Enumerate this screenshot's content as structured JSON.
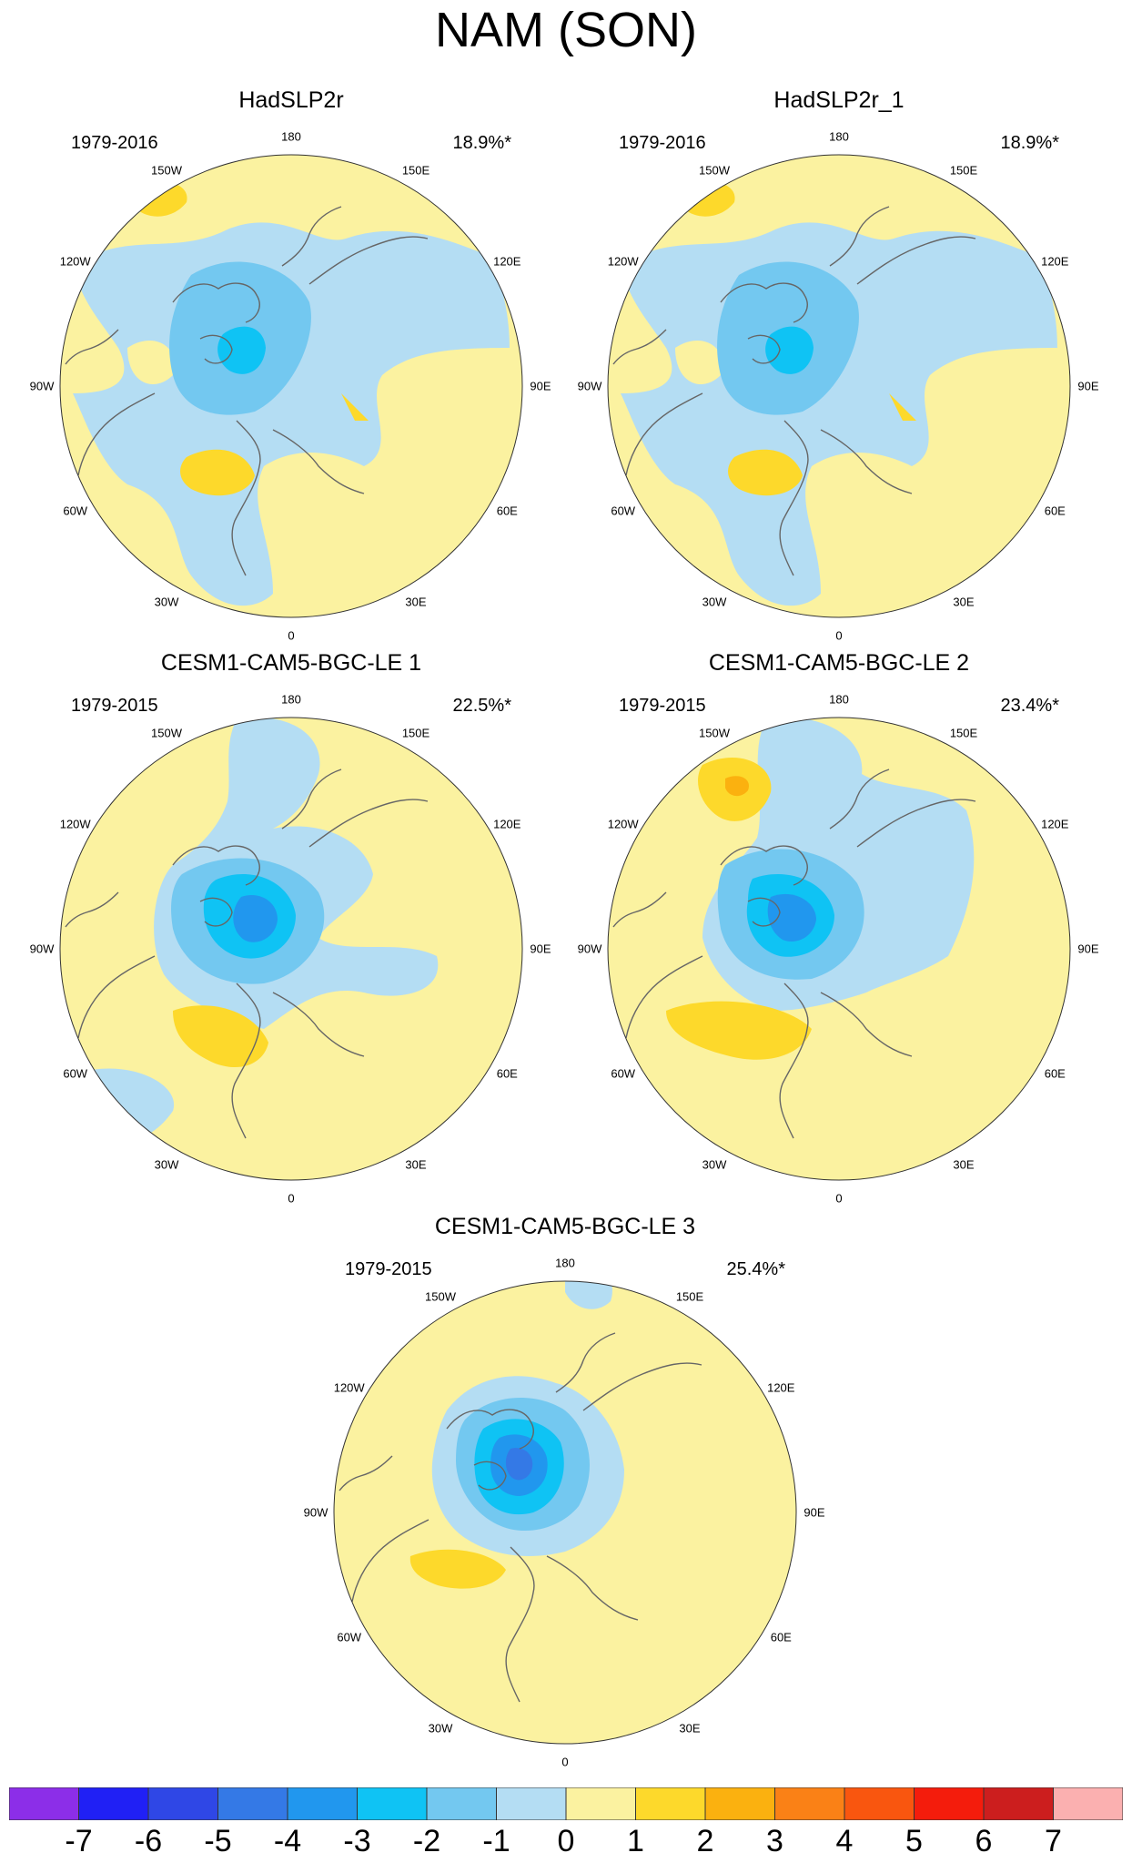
{
  "title": "NAM (SON)",
  "colors": {
    "neg7": "#8c2ee8",
    "neg6": "#2020f5",
    "neg5": "#2f47e6",
    "neg4": "#3479e6",
    "neg3": "#2197ee",
    "neg2": "#0fc3f4",
    "neg1": "#73c8f0",
    "neg0": "#b4ddf3",
    "pos0": "#fbf2a0",
    "pos1": "#fdd92b",
    "pos2": "#fbb10f",
    "pos3": "#fa8116",
    "pos4": "#f9560f",
    "pos5": "#f41c0c",
    "pos6": "#e90b0b",
    "pos7": "#cc1e1e",
    "pos8": "#fbb0b0",
    "coast": "#666666",
    "border": "#333333"
  },
  "panels": [
    {
      "id": "p1",
      "title": "HadSLP2r",
      "years": "1979-2016",
      "pct": "18.9%*"
    },
    {
      "id": "p2",
      "title": "HadSLP2r_1",
      "years": "1979-2016",
      "pct": "18.9%*"
    },
    {
      "id": "p3",
      "title": "CESM1-CAM5-BGC-LE 1",
      "years": "1979-2015",
      "pct": "22.5%*"
    },
    {
      "id": "p4",
      "title": "CESM1-CAM5-BGC-LE 2",
      "years": "1979-2015",
      "pct": "23.4%*"
    },
    {
      "id": "p5",
      "title": "CESM1-CAM5-BGC-LE 3",
      "years": "1979-2015",
      "pct": "25.4%*"
    }
  ],
  "longitudes": [
    "180",
    "150E",
    "120E",
    "90E",
    "60E",
    "30E",
    "0",
    "30W",
    "60W",
    "90W",
    "120W",
    "150W"
  ],
  "colorbar": {
    "labels": [
      "-7",
      "-6",
      "-5",
      "-4",
      "-3",
      "-2",
      "-1",
      "0",
      "1",
      "2",
      "3",
      "4",
      "5",
      "6",
      "7"
    ]
  }
}
